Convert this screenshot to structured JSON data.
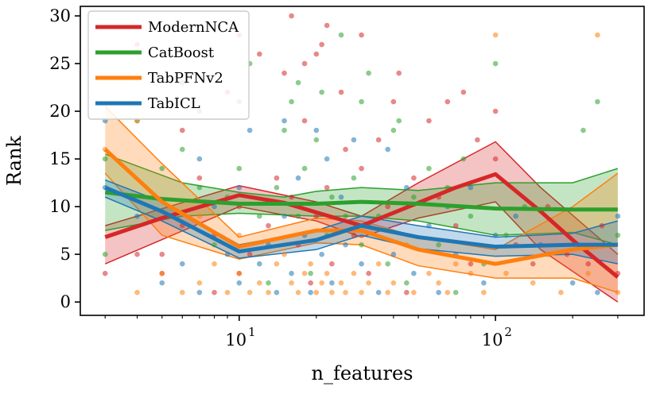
{
  "chart_data": {
    "type": "scatter",
    "xlabel": "n_features",
    "ylabel": "Rank",
    "xscale": "log",
    "xlim": [
      2.4,
      380
    ],
    "ylim": [
      -1.4,
      31
    ],
    "x_ticks": [
      {
        "value": 10,
        "base": "10",
        "exp": "1"
      },
      {
        "value": 100,
        "base": "10",
        "exp": "2"
      }
    ],
    "y_ticks": [
      0,
      5,
      10,
      15,
      20,
      25,
      30
    ],
    "legend_position": "upper-left",
    "grid": false,
    "series": [
      {
        "name": "ModernNCA",
        "color": "#d62728",
        "trend": [
          [
            3,
            6.8
          ],
          [
            5,
            8.8
          ],
          [
            10,
            11.2
          ],
          [
            15,
            10.4
          ],
          [
            20,
            9.4
          ],
          [
            30,
            8.0
          ],
          [
            50,
            10.4
          ],
          [
            70,
            12.0
          ],
          [
            100,
            13.4
          ],
          [
            150,
            9.5
          ],
          [
            200,
            6.5
          ],
          [
            300,
            2.6
          ]
        ],
        "band_upper": [
          [
            3,
            8.0
          ],
          [
            10,
            12.2
          ],
          [
            20,
            10.5
          ],
          [
            30,
            9.0
          ],
          [
            50,
            12.5
          ],
          [
            100,
            16.8
          ],
          [
            150,
            12.0
          ],
          [
            300,
            5.0
          ]
        ],
        "band_lower": [
          [
            3,
            4.0
          ],
          [
            10,
            10.0
          ],
          [
            20,
            8.5
          ],
          [
            30,
            6.8
          ],
          [
            50,
            8.8
          ],
          [
            100,
            10.5
          ],
          [
            150,
            5.5
          ],
          [
            300,
            0.0
          ]
        ],
        "points": [
          [
            3,
            3
          ],
          [
            4,
            5
          ],
          [
            4,
            27
          ],
          [
            5,
            3
          ],
          [
            5,
            5
          ],
          [
            6,
            8
          ],
          [
            6,
            18
          ],
          [
            7,
            13
          ],
          [
            8,
            1
          ],
          [
            8,
            7
          ],
          [
            9,
            22
          ],
          [
            10,
            3
          ],
          [
            10,
            10
          ],
          [
            10,
            28
          ],
          [
            11,
            5
          ],
          [
            12,
            26
          ],
          [
            13,
            8
          ],
          [
            14,
            13
          ],
          [
            15,
            24
          ],
          [
            16,
            30
          ],
          [
            16,
            11
          ],
          [
            17,
            6
          ],
          [
            18,
            25
          ],
          [
            18,
            19
          ],
          [
            19,
            2
          ],
          [
            20,
            26
          ],
          [
            20,
            9
          ],
          [
            21,
            27
          ],
          [
            22,
            29
          ],
          [
            22,
            12
          ],
          [
            23,
            4
          ],
          [
            25,
            22
          ],
          [
            26,
            16
          ],
          [
            28,
            7
          ],
          [
            30,
            28
          ],
          [
            30,
            14
          ],
          [
            32,
            3
          ],
          [
            35,
            17
          ],
          [
            38,
            10
          ],
          [
            40,
            21
          ],
          [
            42,
            24
          ],
          [
            45,
            1
          ],
          [
            48,
            13
          ],
          [
            55,
            19
          ],
          [
            60,
            11
          ],
          [
            65,
            21
          ],
          [
            70,
            8
          ],
          [
            75,
            22
          ],
          [
            80,
            4
          ],
          [
            85,
            17
          ],
          [
            100,
            20
          ],
          [
            100,
            15
          ],
          [
            120,
            6
          ],
          [
            140,
            4
          ],
          [
            160,
            10
          ],
          [
            190,
            5
          ],
          [
            230,
            4
          ],
          [
            260,
            8
          ],
          [
            300,
            3
          ]
        ]
      },
      {
        "name": "CatBoost",
        "color": "#2ca02c",
        "trend": [
          [
            3,
            11.5
          ],
          [
            5,
            10.8
          ],
          [
            10,
            10.3
          ],
          [
            20,
            10.3
          ],
          [
            30,
            10.5
          ],
          [
            50,
            10.3
          ],
          [
            100,
            9.8
          ],
          [
            200,
            9.7
          ],
          [
            300,
            9.7
          ]
        ],
        "band_upper": [
          [
            3,
            15.5
          ],
          [
            6,
            12.5
          ],
          [
            10,
            11.5
          ],
          [
            15,
            11.0
          ],
          [
            20,
            11.6
          ],
          [
            30,
            12.0
          ],
          [
            50,
            11.7
          ],
          [
            100,
            12.5
          ],
          [
            200,
            12.5
          ],
          [
            300,
            14.0
          ]
        ],
        "band_lower": [
          [
            3,
            7.5
          ],
          [
            6,
            9.0
          ],
          [
            10,
            9.3
          ],
          [
            20,
            9.0
          ],
          [
            30,
            9.0
          ],
          [
            50,
            8.5
          ],
          [
            100,
            7.0
          ],
          [
            200,
            7.3
          ],
          [
            300,
            6.0
          ]
        ],
        "points": [
          [
            3,
            5
          ],
          [
            3,
            15
          ],
          [
            4,
            19
          ],
          [
            5,
            14
          ],
          [
            6,
            23
          ],
          [
            6,
            16
          ],
          [
            7,
            12
          ],
          [
            7,
            20
          ],
          [
            8,
            6
          ],
          [
            9,
            11
          ],
          [
            10,
            21
          ],
          [
            10,
            14
          ],
          [
            11,
            25
          ],
          [
            12,
            9
          ],
          [
            13,
            2
          ],
          [
            14,
            12
          ],
          [
            15,
            18
          ],
          [
            16,
            21
          ],
          [
            17,
            23
          ],
          [
            17,
            9
          ],
          [
            18,
            14
          ],
          [
            19,
            3
          ],
          [
            20,
            17
          ],
          [
            21,
            22
          ],
          [
            22,
            7
          ],
          [
            23,
            11
          ],
          [
            25,
            28
          ],
          [
            26,
            9
          ],
          [
            28,
            13
          ],
          [
            30,
            21
          ],
          [
            30,
            6
          ],
          [
            32,
            24
          ],
          [
            35,
            9
          ],
          [
            38,
            4
          ],
          [
            40,
            18
          ],
          [
            42,
            19
          ],
          [
            45,
            2
          ],
          [
            48,
            11
          ],
          [
            55,
            14
          ],
          [
            60,
            6
          ],
          [
            65,
            12
          ],
          [
            70,
            1
          ],
          [
            75,
            15
          ],
          [
            80,
            9
          ],
          [
            90,
            4
          ],
          [
            100,
            25
          ],
          [
            110,
            7
          ],
          [
            130,
            10
          ],
          [
            160,
            5
          ],
          [
            220,
            18
          ],
          [
            250,
            21
          ],
          [
            280,
            6
          ],
          [
            300,
            7
          ]
        ]
      },
      {
        "name": "TabPFNv2",
        "color": "#ff7f0e",
        "trend": [
          [
            3,
            16.0
          ],
          [
            5,
            10.5
          ],
          [
            10,
            5.8
          ],
          [
            20,
            7.5
          ],
          [
            30,
            7.5
          ],
          [
            50,
            5.5
          ],
          [
            100,
            4.0
          ],
          [
            200,
            5.5
          ],
          [
            300,
            6.0
          ]
        ],
        "band_upper": [
          [
            3,
            20.5
          ],
          [
            5,
            14.5
          ],
          [
            10,
            6.8
          ],
          [
            20,
            8.8
          ],
          [
            30,
            8.5
          ],
          [
            50,
            6.8
          ],
          [
            100,
            5.5
          ],
          [
            200,
            10.0
          ],
          [
            300,
            13.5
          ]
        ],
        "band_lower": [
          [
            3,
            13.5
          ],
          [
            5,
            7.0
          ],
          [
            10,
            4.5
          ],
          [
            20,
            6.2
          ],
          [
            30,
            6.0
          ],
          [
            50,
            3.8
          ],
          [
            100,
            2.5
          ],
          [
            200,
            2.5
          ],
          [
            300,
            1.0
          ]
        ],
        "points": [
          [
            3,
            16
          ],
          [
            4,
            19
          ],
          [
            4,
            1
          ],
          [
            5,
            3
          ],
          [
            6,
            1
          ],
          [
            7,
            2
          ],
          [
            7,
            9
          ],
          [
            8,
            4
          ],
          [
            9,
            1
          ],
          [
            10,
            3
          ],
          [
            10,
            7
          ],
          [
            11,
            1
          ],
          [
            12,
            2
          ],
          [
            13,
            1
          ],
          [
            14,
            4
          ],
          [
            15,
            5
          ],
          [
            16,
            2
          ],
          [
            17,
            1
          ],
          [
            18,
            3
          ],
          [
            19,
            4
          ],
          [
            20,
            1
          ],
          [
            21,
            2
          ],
          [
            22,
            3
          ],
          [
            23,
            1
          ],
          [
            25,
            2
          ],
          [
            26,
            1
          ],
          [
            28,
            3
          ],
          [
            30,
            1
          ],
          [
            32,
            2
          ],
          [
            35,
            4
          ],
          [
            38,
            1
          ],
          [
            40,
            2
          ],
          [
            45,
            6
          ],
          [
            48,
            1
          ],
          [
            55,
            3
          ],
          [
            60,
            2
          ],
          [
            65,
            1
          ],
          [
            70,
            4
          ],
          [
            80,
            3
          ],
          [
            90,
            1
          ],
          [
            100,
            28
          ],
          [
            110,
            3
          ],
          [
            140,
            2
          ],
          [
            180,
            1
          ],
          [
            230,
            3
          ],
          [
            250,
            28
          ],
          [
            300,
            1
          ]
        ]
      },
      {
        "name": "TabICL",
        "color": "#1f77b4",
        "trend": [
          [
            3,
            12.0
          ],
          [
            5,
            9.5
          ],
          [
            10,
            5.3
          ],
          [
            20,
            6.5
          ],
          [
            30,
            8.0
          ],
          [
            50,
            6.8
          ],
          [
            100,
            5.8
          ],
          [
            200,
            6.0
          ],
          [
            300,
            6.0
          ]
        ],
        "band_upper": [
          [
            3,
            12.8
          ],
          [
            5,
            10.5
          ],
          [
            10,
            6.0
          ],
          [
            20,
            7.5
          ],
          [
            30,
            9.0
          ],
          [
            50,
            8.0
          ],
          [
            100,
            6.8
          ],
          [
            200,
            7.2
          ],
          [
            300,
            8.5
          ]
        ],
        "band_lower": [
          [
            3,
            11.0
          ],
          [
            5,
            8.5
          ],
          [
            10,
            4.6
          ],
          [
            20,
            5.5
          ],
          [
            30,
            7.0
          ],
          [
            50,
            5.6
          ],
          [
            100,
            4.8
          ],
          [
            200,
            5.0
          ],
          [
            300,
            4.0
          ]
        ],
        "points": [
          [
            3,
            19
          ],
          [
            3,
            12
          ],
          [
            4,
            9
          ],
          [
            5,
            2
          ],
          [
            6,
            4
          ],
          [
            7,
            1
          ],
          [
            7,
            15
          ],
          [
            8,
            10
          ],
          [
            9,
            5
          ],
          [
            10,
            12
          ],
          [
            10,
            2
          ],
          [
            11,
            18
          ],
          [
            12,
            4
          ],
          [
            13,
            6
          ],
          [
            14,
            1
          ],
          [
            15,
            19
          ],
          [
            15,
            9
          ],
          [
            16,
            3
          ],
          [
            17,
            13
          ],
          [
            18,
            7
          ],
          [
            19,
            1
          ],
          [
            20,
            18
          ],
          [
            21,
            5
          ],
          [
            22,
            15
          ],
          [
            23,
            2
          ],
          [
            25,
            11
          ],
          [
            26,
            6
          ],
          [
            28,
            17
          ],
          [
            30,
            4
          ],
          [
            32,
            8
          ],
          [
            35,
            1
          ],
          [
            38,
            16
          ],
          [
            40,
            5
          ],
          [
            45,
            12
          ],
          [
            48,
            3
          ],
          [
            55,
            8
          ],
          [
            60,
            1
          ],
          [
            65,
            10
          ],
          [
            70,
            5
          ],
          [
            80,
            12
          ],
          [
            90,
            2
          ],
          [
            100,
            7
          ],
          [
            120,
            9
          ],
          [
            150,
            6
          ],
          [
            200,
            2
          ],
          [
            250,
            1
          ],
          [
            300,
            9
          ]
        ]
      }
    ]
  }
}
